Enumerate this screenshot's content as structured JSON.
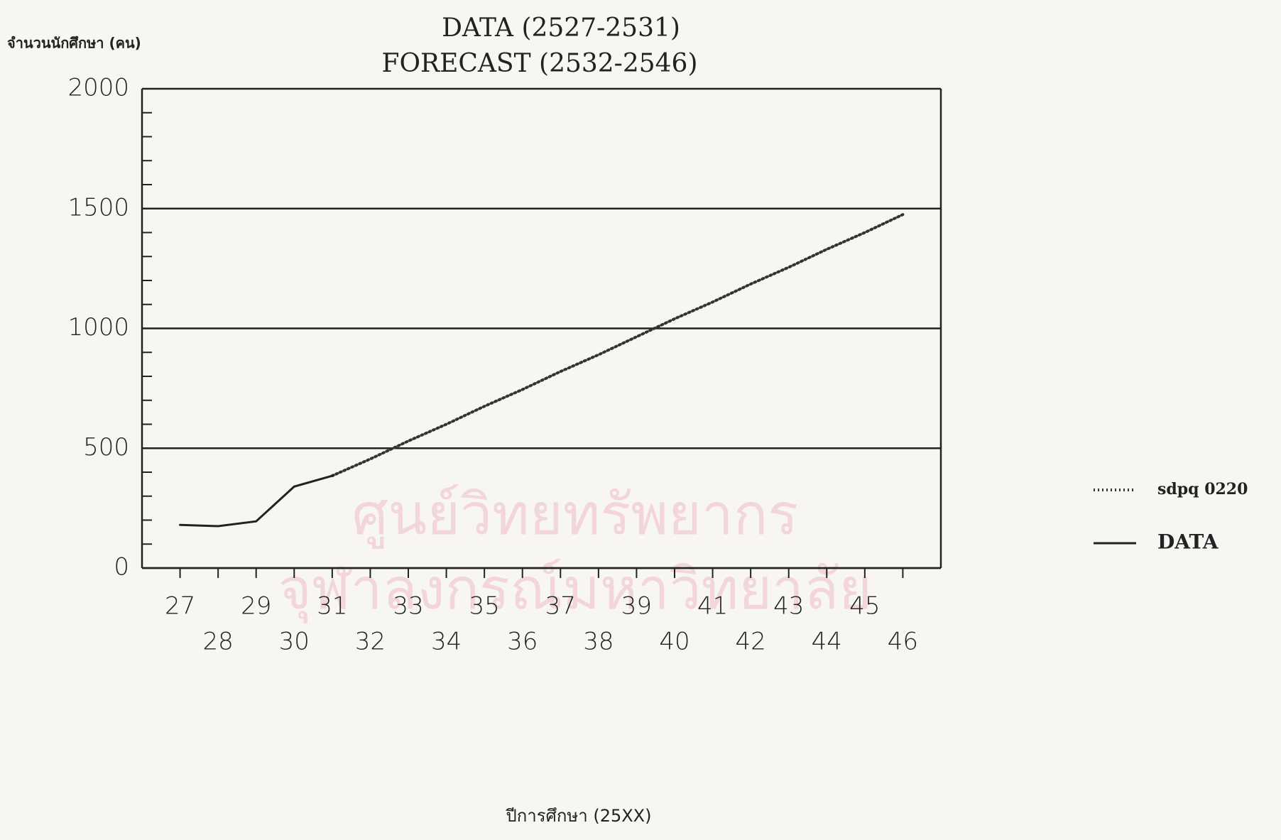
{
  "chart_data": {
    "type": "line",
    "title": "DATA (2527-2531)",
    "subtitle": "FORECAST (2532-2546)",
    "y_label": "จำนวนนักศึกษา (คน)",
    "x_label": "ปีการศึกษา (25XX)",
    "watermark": [
      "ศูนย์วิทยทรัพยากร",
      "จุฬาลงกรณ์มหาวิทยาลัย"
    ],
    "xlim": [
      26,
      47
    ],
    "xticks": [
      27,
      28,
      29,
      30,
      31,
      32,
      33,
      34,
      35,
      36,
      37,
      38,
      39,
      40,
      41,
      42,
      43,
      44,
      45,
      46
    ],
    "ylim": [
      0,
      2000
    ],
    "yticks": [
      0,
      500,
      1000,
      1500,
      2000
    ],
    "minor_yticks": [
      100,
      200,
      300,
      400,
      600,
      700,
      800,
      900,
      1100,
      1200,
      1300,
      1400,
      1600,
      1700,
      1800,
      1900
    ],
    "grid": true,
    "legend": "right",
    "series": [
      {
        "name": "sdpq 0220",
        "color": "#333333",
        "style": "dotted",
        "x": [
          31,
          32,
          33,
          34,
          35,
          36,
          37,
          38,
          39,
          40,
          41,
          42,
          43,
          44,
          45,
          46
        ],
        "values": [
          385,
          455,
          530,
          600,
          675,
          745,
          820,
          890,
          965,
          1040,
          1110,
          1185,
          1255,
          1330,
          1400,
          1475
        ]
      },
      {
        "name": "DATA",
        "color": "#222222",
        "style": "solid",
        "x": [
          27,
          28,
          29,
          30,
          31
        ],
        "values": [
          180,
          175,
          195,
          340,
          385
        ]
      }
    ]
  }
}
